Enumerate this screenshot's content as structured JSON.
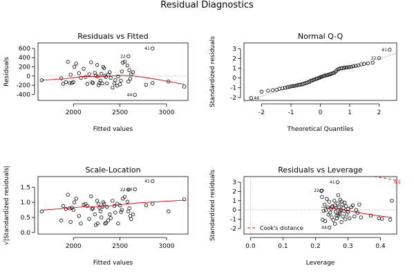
{
  "figure": {
    "title": "Residual Diagnostics"
  },
  "chart_data": [
    {
      "type": "scatter",
      "title": "Residuals vs Fitted",
      "xlabel": "Fitted values",
      "ylabel": "Residuals",
      "xlim": [
        1620,
        3230
      ],
      "ylim": [
        -530,
        720
      ],
      "xticks": [
        "2000",
        "2500",
        "3000"
      ],
      "xtick_values": [
        2000,
        2500,
        3000
      ],
      "yticks": [
        "-400",
        "-200",
        "0",
        "200",
        "400",
        "600"
      ],
      "ytick_values": [
        -400,
        -200,
        0,
        200,
        400,
        600
      ],
      "points": [
        [
          1660,
          -90
        ],
        [
          1870,
          -50
        ],
        [
          1890,
          -170
        ],
        [
          1920,
          -130
        ],
        [
          1940,
          310
        ],
        [
          1960,
          -150
        ],
        [
          1970,
          30
        ],
        [
          1985,
          -150
        ],
        [
          2000,
          -130
        ],
        [
          2010,
          200
        ],
        [
          2030,
          270
        ],
        [
          2060,
          60
        ],
        [
          2080,
          -40
        ],
        [
          2110,
          160
        ],
        [
          2130,
          -20
        ],
        [
          2150,
          -170
        ],
        [
          2170,
          40
        ],
        [
          2190,
          300
        ],
        [
          2200,
          -140
        ],
        [
          2210,
          -150
        ],
        [
          2230,
          70
        ],
        [
          2240,
          10
        ],
        [
          2255,
          240
        ],
        [
          2260,
          -10
        ],
        [
          2270,
          -200
        ],
        [
          2280,
          -150
        ],
        [
          2290,
          -100
        ],
        [
          2300,
          50
        ],
        [
          2310,
          -160
        ],
        [
          2320,
          200
        ],
        [
          2330,
          170
        ],
        [
          2340,
          10
        ],
        [
          2350,
          -20
        ],
        [
          2360,
          -160
        ],
        [
          2375,
          30
        ],
        [
          2390,
          80
        ],
        [
          2400,
          -40
        ],
        [
          2420,
          -250
        ],
        [
          2440,
          -160
        ],
        [
          2450,
          -90
        ],
        [
          2470,
          -210
        ],
        [
          2480,
          -10
        ],
        [
          2500,
          -180
        ],
        [
          2510,
          -100
        ],
        [
          2520,
          100
        ],
        [
          2530,
          290
        ],
        [
          2550,
          310
        ],
        [
          2580,
          230
        ],
        [
          2590,
          -120
        ],
        [
          2600,
          130
        ],
        [
          2610,
          -60
        ],
        [
          2620,
          40
        ],
        [
          2640,
          80
        ],
        [
          2660,
          -410
        ],
        [
          2780,
          -190
        ],
        [
          2850,
          -150
        ],
        [
          3020,
          -120
        ],
        [
          3190,
          -230
        ],
        [
          2590,
          430
        ],
        [
          2850,
          600
        ]
      ],
      "labels": [
        {
          "text": "41",
          "x": 2850,
          "y": 600
        },
        {
          "text": "22",
          "x": 2590,
          "y": 430
        },
        {
          "text": "44",
          "x": 2660,
          "y": -410
        }
      ],
      "smooth": [
        [
          1660,
          -90
        ],
        [
          1900,
          -60
        ],
        [
          2100,
          -10
        ],
        [
          2300,
          -10
        ],
        [
          2500,
          10
        ],
        [
          2650,
          0
        ],
        [
          2800,
          -40
        ],
        [
          3000,
          -110
        ],
        [
          3190,
          -180
        ]
      ]
    },
    {
      "type": "scatter",
      "title": "Normal Q-Q",
      "xlabel": "Theoretical Quantiles",
      "ylabel": "Standardized residuals",
      "xlim": [
        -2.6,
        2.6
      ],
      "ylim": [
        -2.3,
        3.6
      ],
      "xticks": [
        "-2",
        "-1",
        "0",
        "1",
        "2"
      ],
      "xtick_values": [
        -2,
        -1,
        0,
        1,
        2
      ],
      "yticks": [
        "-2",
        "-1",
        "0",
        "1",
        "2",
        "3"
      ],
      "ytick_values": [
        -2,
        -1,
        0,
        1,
        2,
        3
      ],
      "points": [
        [
          -2.36,
          -2.05
        ],
        [
          -2.0,
          -1.4
        ],
        [
          -1.78,
          -1.3
        ],
        [
          -1.62,
          -1.25
        ],
        [
          -1.49,
          -1.2
        ],
        [
          -1.39,
          -1.1
        ],
        [
          -1.29,
          -1.05
        ],
        [
          -1.2,
          -1.0
        ],
        [
          -1.12,
          -0.95
        ],
        [
          -1.05,
          -0.9
        ],
        [
          -0.98,
          -0.85
        ],
        [
          -0.92,
          -0.82
        ],
        [
          -0.86,
          -0.8
        ],
        [
          -0.8,
          -0.75
        ],
        [
          -0.74,
          -0.7
        ],
        [
          -0.69,
          -0.68
        ],
        [
          -0.63,
          -0.65
        ],
        [
          -0.58,
          -0.6
        ],
        [
          -0.53,
          -0.55
        ],
        [
          -0.48,
          -0.5
        ],
        [
          -0.43,
          -0.45
        ],
        [
          -0.38,
          -0.4
        ],
        [
          -0.34,
          -0.3
        ],
        [
          -0.29,
          -0.25
        ],
        [
          -0.24,
          -0.2
        ],
        [
          -0.2,
          -0.15
        ],
        [
          -0.15,
          -0.1
        ],
        [
          -0.11,
          -0.05
        ],
        [
          -0.06,
          0.0
        ],
        [
          -0.02,
          0.05
        ],
        [
          0.02,
          0.1
        ],
        [
          0.06,
          0.15
        ],
        [
          0.11,
          0.2
        ],
        [
          0.15,
          0.25
        ],
        [
          0.2,
          0.28
        ],
        [
          0.24,
          0.3
        ],
        [
          0.29,
          0.35
        ],
        [
          0.34,
          0.4
        ],
        [
          0.38,
          0.45
        ],
        [
          0.43,
          0.5
        ],
        [
          0.48,
          0.55
        ],
        [
          0.53,
          0.7
        ],
        [
          0.58,
          0.85
        ],
        [
          0.63,
          0.95
        ],
        [
          0.69,
          1.0
        ],
        [
          0.74,
          1.02
        ],
        [
          0.8,
          1.05
        ],
        [
          0.86,
          1.08
        ],
        [
          0.92,
          1.1
        ],
        [
          0.98,
          1.12
        ],
        [
          1.05,
          1.15
        ],
        [
          1.12,
          1.2
        ],
        [
          1.2,
          1.25
        ],
        [
          1.29,
          1.3
        ],
        [
          1.39,
          1.4
        ],
        [
          1.49,
          1.45
        ],
        [
          1.62,
          1.5
        ],
        [
          1.78,
          1.58
        ],
        [
          2.0,
          2.05
        ],
        [
          2.36,
          2.9
        ]
      ],
      "labels": [
        {
          "text": "41",
          "x": 2.36,
          "y": 2.9
        },
        {
          "text": "22",
          "x": 2.0,
          "y": 2.05
        },
        {
          "text": "44",
          "x": -2.36,
          "y": -2.05
        }
      ]
    },
    {
      "type": "scatter",
      "title": "Scale-Location",
      "xlabel": "Fitted values",
      "ylabel": "√|Standardized residuals|",
      "xlim": [
        1620,
        3230
      ],
      "ylim": [
        -0.05,
        1.85
      ],
      "xticks": [
        "2000",
        "2500",
        "3000"
      ],
      "xtick_values": [
        2000,
        2500,
        3000
      ],
      "yticks": [
        "0.0",
        "0.5",
        "1.0",
        "1.5"
      ],
      "ytick_values": [
        0,
        0.5,
        1.0,
        1.5
      ],
      "points": [
        [
          1660,
          0.7
        ],
        [
          1870,
          0.4
        ],
        [
          1890,
          0.88
        ],
        [
          1920,
          0.78
        ],
        [
          1940,
          1.25
        ],
        [
          1960,
          0.8
        ],
        [
          1970,
          0.35
        ],
        [
          1985,
          0.82
        ],
        [
          2000,
          0.75
        ],
        [
          2010,
          1.0
        ],
        [
          2030,
          1.12
        ],
        [
          2060,
          0.55
        ],
        [
          2080,
          0.3
        ],
        [
          2110,
          0.92
        ],
        [
          2130,
          0.95
        ],
        [
          2150,
          0.88
        ],
        [
          2170,
          0.45
        ],
        [
          2190,
          1.2
        ],
        [
          2200,
          0.78
        ],
        [
          2210,
          0.8
        ],
        [
          2230,
          0.6
        ],
        [
          2240,
          0.25
        ],
        [
          2255,
          1.05
        ],
        [
          2260,
          0.3
        ],
        [
          2270,
          0.95
        ],
        [
          2280,
          0.82
        ],
        [
          2290,
          0.7
        ],
        [
          2300,
          0.5
        ],
        [
          2310,
          0.85
        ],
        [
          2320,
          1.0
        ],
        [
          2330,
          0.95
        ],
        [
          2340,
          0.3
        ],
        [
          2350,
          0.32
        ],
        [
          2360,
          0.85
        ],
        [
          2375,
          0.4
        ],
        [
          2390,
          0.6
        ],
        [
          2400,
          0.48
        ],
        [
          2420,
          1.05
        ],
        [
          2440,
          0.88
        ],
        [
          2450,
          0.66
        ],
        [
          2470,
          0.95
        ],
        [
          2480,
          0.3
        ],
        [
          2500,
          0.9
        ],
        [
          2510,
          0.68
        ],
        [
          2520,
          0.75
        ],
        [
          2530,
          1.12
        ],
        [
          2550,
          1.18
        ],
        [
          2580,
          1.02
        ],
        [
          2590,
          0.7
        ],
        [
          2600,
          0.8
        ],
        [
          2610,
          0.55
        ],
        [
          2620,
          0.45
        ],
        [
          2640,
          0.6
        ],
        [
          2780,
          0.9
        ],
        [
          2850,
          0.95
        ],
        [
          3020,
          0.7
        ],
        [
          3190,
          1.1
        ],
        [
          2590,
          1.42
        ],
        [
          2660,
          1.43
        ],
        [
          2850,
          1.7
        ]
      ],
      "labels": [
        {
          "text": "41",
          "x": 2850,
          "y": 1.7
        },
        {
          "text": "22",
          "x": 2590,
          "y": 1.42
        },
        {
          "text": "44",
          "x": 2660,
          "y": 1.43
        }
      ],
      "smooth": [
        [
          1660,
          0.74
        ],
        [
          1900,
          0.8
        ],
        [
          2100,
          0.85
        ],
        [
          2300,
          0.85
        ],
        [
          2500,
          0.92
        ],
        [
          2700,
          0.98
        ],
        [
          2900,
          1.02
        ],
        [
          3190,
          1.07
        ]
      ]
    },
    {
      "type": "scatter",
      "title": "Residuals vs Leverage",
      "xlabel": "Leverage",
      "ylabel": "Standardized residuals",
      "xlim": [
        -0.02,
        0.45
      ],
      "ylim": [
        -2.6,
        3.6
      ],
      "xticks": [
        "0.0",
        "0.1",
        "0.2",
        "0.3",
        "0.4"
      ],
      "xtick_values": [
        0,
        0.1,
        0.2,
        0.3,
        0.4
      ],
      "yticks": [
        "-2",
        "-1",
        "0",
        "1",
        "2",
        "3"
      ],
      "ytick_values": [
        -2,
        -1,
        0,
        1,
        2,
        3
      ],
      "points": [
        [
          0.218,
          2.05
        ],
        [
          0.22,
          1.4
        ],
        [
          0.222,
          -1.05
        ],
        [
          0.225,
          -0.1
        ],
        [
          0.228,
          0.6
        ],
        [
          0.23,
          -1.2
        ],
        [
          0.232,
          0.0
        ],
        [
          0.235,
          1.2
        ],
        [
          0.238,
          0.3
        ],
        [
          0.24,
          -0.5
        ],
        [
          0.242,
          0.9
        ],
        [
          0.245,
          -0.3
        ],
        [
          0.248,
          0.1
        ],
        [
          0.25,
          -0.8
        ],
        [
          0.252,
          0.4
        ],
        [
          0.255,
          -1.1
        ],
        [
          0.258,
          1.0
        ],
        [
          0.26,
          0.5
        ],
        [
          0.262,
          -0.2
        ],
        [
          0.264,
          0.2
        ],
        [
          0.266,
          -0.9
        ],
        [
          0.268,
          0.7
        ],
        [
          0.27,
          -0.6
        ],
        [
          0.272,
          0.3
        ],
        [
          0.274,
          -0.4
        ],
        [
          0.276,
          1.1
        ],
        [
          0.278,
          0.0
        ],
        [
          0.28,
          -1.3
        ],
        [
          0.282,
          0.6
        ],
        [
          0.284,
          -0.7
        ],
        [
          0.286,
          0.2
        ],
        [
          0.288,
          -0.1
        ],
        [
          0.29,
          0.8
        ],
        [
          0.292,
          -1.0
        ],
        [
          0.294,
          0.4
        ],
        [
          0.296,
          -0.5
        ],
        [
          0.3,
          0.1
        ],
        [
          0.305,
          -0.9
        ],
        [
          0.31,
          0.3
        ],
        [
          0.315,
          0.5
        ],
        [
          0.32,
          -0.7
        ],
        [
          0.325,
          0.0
        ],
        [
          0.33,
          -0.3
        ],
        [
          0.335,
          0.6
        ],
        [
          0.34,
          -0.8
        ],
        [
          0.265,
          -0.6
        ],
        [
          0.27,
          1.6
        ],
        [
          0.275,
          -0.2
        ],
        [
          0.28,
          0.9
        ],
        [
          0.26,
          -1.5
        ],
        [
          0.3,
          -0.2
        ],
        [
          0.25,
          0.3
        ],
        [
          0.395,
          -0.9
        ],
        [
          0.405,
          -0.95
        ],
        [
          0.43,
          -1.05
        ],
        [
          0.435,
          1.0
        ],
        [
          0.22,
          2.1
        ],
        [
          0.243,
          -1.9
        ],
        [
          0.268,
          3.0
        ],
        [
          0.37,
          -0.6
        ]
      ],
      "labels": [
        {
          "text": "41",
          "x": 0.268,
          "y": 3.0
        },
        {
          "text": "22",
          "x": 0.22,
          "y": 2.1
        },
        {
          "text": "44",
          "x": 0.243,
          "y": -1.9
        }
      ],
      "smooth": [
        [
          0.218,
          0.3
        ],
        [
          0.26,
          0.2
        ],
        [
          0.3,
          -0.1
        ],
        [
          0.35,
          -0.4
        ],
        [
          0.4,
          -0.65
        ],
        [
          0.435,
          -0.8
        ]
      ],
      "cook_levels": [
        {
          "label": "0.5",
          "points": [
            [
              0.38,
              3.6
            ],
            [
              0.41,
              3.45
            ],
            [
              0.45,
              3.2
            ]
          ]
        }
      ],
      "legend": {
        "label": "Cook's distance",
        "position": "bottom-left"
      }
    }
  ]
}
